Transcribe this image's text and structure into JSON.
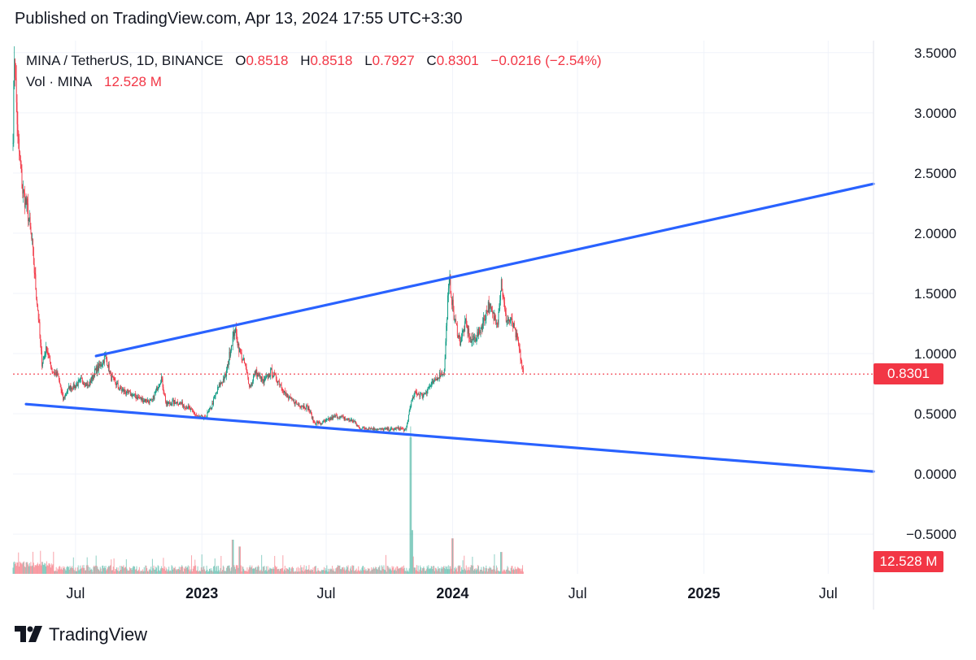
{
  "header": {
    "published": "Published on TradingView.com, Apr 13, 2024 17:55 UTC+3:30"
  },
  "legend": {
    "symbol": "MINA / TetherUS, 1D, BINANCE",
    "o_label": "O",
    "o_value": "0.8518",
    "h_label": "H",
    "h_value": "0.8518",
    "l_label": "L",
    "l_value": "0.7927",
    "c_label": "C",
    "c_value": "0.8301",
    "change": "−0.0216 (−2.54%)",
    "vol_label": "Vol · MINA",
    "vol_value": "12.528 M"
  },
  "price_tag": "0.8301",
  "volume_tag": "12.528 M",
  "footer": {
    "brand": "TradingView"
  },
  "colors": {
    "up": "#089981",
    "down": "#f23645",
    "trendline": "#2962ff",
    "grid": "#f0f3fa",
    "text": "#131722"
  },
  "chart_data": {
    "type": "candlestick",
    "y_ticks": [
      "3.5000",
      "3.0000",
      "2.5000",
      "2.0000",
      "1.5000",
      "1.0000",
      "0.5000",
      "0.0000",
      "−0.5000"
    ],
    "y_tick_values": [
      3.5,
      3.0,
      2.5,
      2.0,
      1.5,
      1.0,
      0.5,
      0.0,
      -0.5
    ],
    "ylim": [
      -0.83,
      3.6
    ],
    "x_ticks": [
      {
        "label": "Jul",
        "date": "2022-07-01",
        "bold": false
      },
      {
        "label": "2023",
        "date": "2023-01-01",
        "bold": true
      },
      {
        "label": "Jul",
        "date": "2023-07-01",
        "bold": false
      },
      {
        "label": "2024",
        "date": "2024-01-01",
        "bold": true
      },
      {
        "label": "Jul",
        "date": "2024-07-01",
        "bold": false
      },
      {
        "label": "2025",
        "date": "2025-01-01",
        "bold": true
      },
      {
        "label": "Jul",
        "date": "2025-07-01",
        "bold": false
      }
    ],
    "x_start": "2022-04-01",
    "x_end": "2025-09-05",
    "last_price": 0.8301,
    "series_path": [
      [
        "2022-04-01",
        2.85
      ],
      [
        "2022-04-03",
        3.5
      ],
      [
        "2022-04-08",
        2.8
      ],
      [
        "2022-04-15",
        2.35
      ],
      [
        "2022-04-22",
        2.2
      ],
      [
        "2022-04-29",
        1.9
      ],
      [
        "2022-05-04",
        1.55
      ],
      [
        "2022-05-08",
        1.3
      ],
      [
        "2022-05-13",
        0.92
      ],
      [
        "2022-05-20",
        1.05
      ],
      [
        "2022-05-28",
        0.86
      ],
      [
        "2022-06-05",
        0.82
      ],
      [
        "2022-06-13",
        0.62
      ],
      [
        "2022-06-22",
        0.72
      ],
      [
        "2022-07-01",
        0.73
      ],
      [
        "2022-07-10",
        0.78
      ],
      [
        "2022-07-20",
        0.73
      ],
      [
        "2022-07-29",
        0.85
      ],
      [
        "2022-08-06",
        0.9
      ],
      [
        "2022-08-14",
        0.98
      ],
      [
        "2022-08-22",
        0.8
      ],
      [
        "2022-09-05",
        0.7
      ],
      [
        "2022-09-20",
        0.66
      ],
      [
        "2022-10-05",
        0.62
      ],
      [
        "2022-10-20",
        0.6
      ],
      [
        "2022-11-03",
        0.8
      ],
      [
        "2022-11-10",
        0.58
      ],
      [
        "2022-11-25",
        0.6
      ],
      [
        "2022-12-10",
        0.56
      ],
      [
        "2022-12-25",
        0.48
      ],
      [
        "2023-01-05",
        0.46
      ],
      [
        "2023-01-15",
        0.56
      ],
      [
        "2023-01-25",
        0.72
      ],
      [
        "2023-02-05",
        0.82
      ],
      [
        "2023-02-12",
        1.05
      ],
      [
        "2023-02-18",
        1.2
      ],
      [
        "2023-02-25",
        1.02
      ],
      [
        "2023-03-05",
        0.9
      ],
      [
        "2023-03-12",
        0.72
      ],
      [
        "2023-03-20",
        0.85
      ],
      [
        "2023-04-01",
        0.76
      ],
      [
        "2023-04-12",
        0.85
      ],
      [
        "2023-04-25",
        0.75
      ],
      [
        "2023-05-05",
        0.64
      ],
      [
        "2023-05-20",
        0.58
      ],
      [
        "2023-06-05",
        0.55
      ],
      [
        "2023-06-13",
        0.43
      ],
      [
        "2023-06-22",
        0.42
      ],
      [
        "2023-07-01",
        0.44
      ],
      [
        "2023-07-15",
        0.48
      ],
      [
        "2023-07-28",
        0.46
      ],
      [
        "2023-08-10",
        0.44
      ],
      [
        "2023-08-18",
        0.38
      ],
      [
        "2023-09-01",
        0.38
      ],
      [
        "2023-09-20",
        0.37
      ],
      [
        "2023-10-05",
        0.37
      ],
      [
        "2023-10-18",
        0.38
      ],
      [
        "2023-10-25",
        0.36
      ],
      [
        "2023-11-01",
        0.58
      ],
      [
        "2023-11-08",
        0.68
      ],
      [
        "2023-11-18",
        0.65
      ],
      [
        "2023-11-28",
        0.72
      ],
      [
        "2023-12-05",
        0.76
      ],
      [
        "2023-12-12",
        0.82
      ],
      [
        "2023-12-20",
        0.85
      ],
      [
        "2023-12-25",
        1.45
      ],
      [
        "2023-12-28",
        1.6
      ],
      [
        "2024-01-03",
        1.3
      ],
      [
        "2024-01-12",
        1.1
      ],
      [
        "2024-01-20",
        1.25
      ],
      [
        "2024-01-28",
        1.1
      ],
      [
        "2024-02-06",
        1.15
      ],
      [
        "2024-02-14",
        1.25
      ],
      [
        "2024-02-22",
        1.4
      ],
      [
        "2024-03-01",
        1.3
      ],
      [
        "2024-03-07",
        1.28
      ],
      [
        "2024-03-12",
        1.6
      ],
      [
        "2024-03-18",
        1.3
      ],
      [
        "2024-03-28",
        1.25
      ],
      [
        "2024-04-05",
        1.1
      ],
      [
        "2024-04-13",
        0.83
      ]
    ],
    "trendlines": [
      {
        "name": "upper",
        "x1": "2022-07-31",
        "y1": 0.98,
        "x2": "2025-09-05",
        "y2": 2.41
      },
      {
        "name": "lower",
        "x1": "2022-04-20",
        "y1": 0.58,
        "x2": "2025-09-05",
        "y2": 0.02
      }
    ],
    "volume_spikes": [
      {
        "date": "2023-11-01",
        "frac": 1.0
      },
      {
        "date": "2023-11-03",
        "frac": 0.32
      },
      {
        "date": "2024-01-01",
        "frac": 0.26
      },
      {
        "date": "2023-02-15",
        "frac": 0.25
      },
      {
        "date": "2023-02-25",
        "frac": 0.2
      },
      {
        "date": "2024-03-12",
        "frac": 0.16
      }
    ]
  }
}
